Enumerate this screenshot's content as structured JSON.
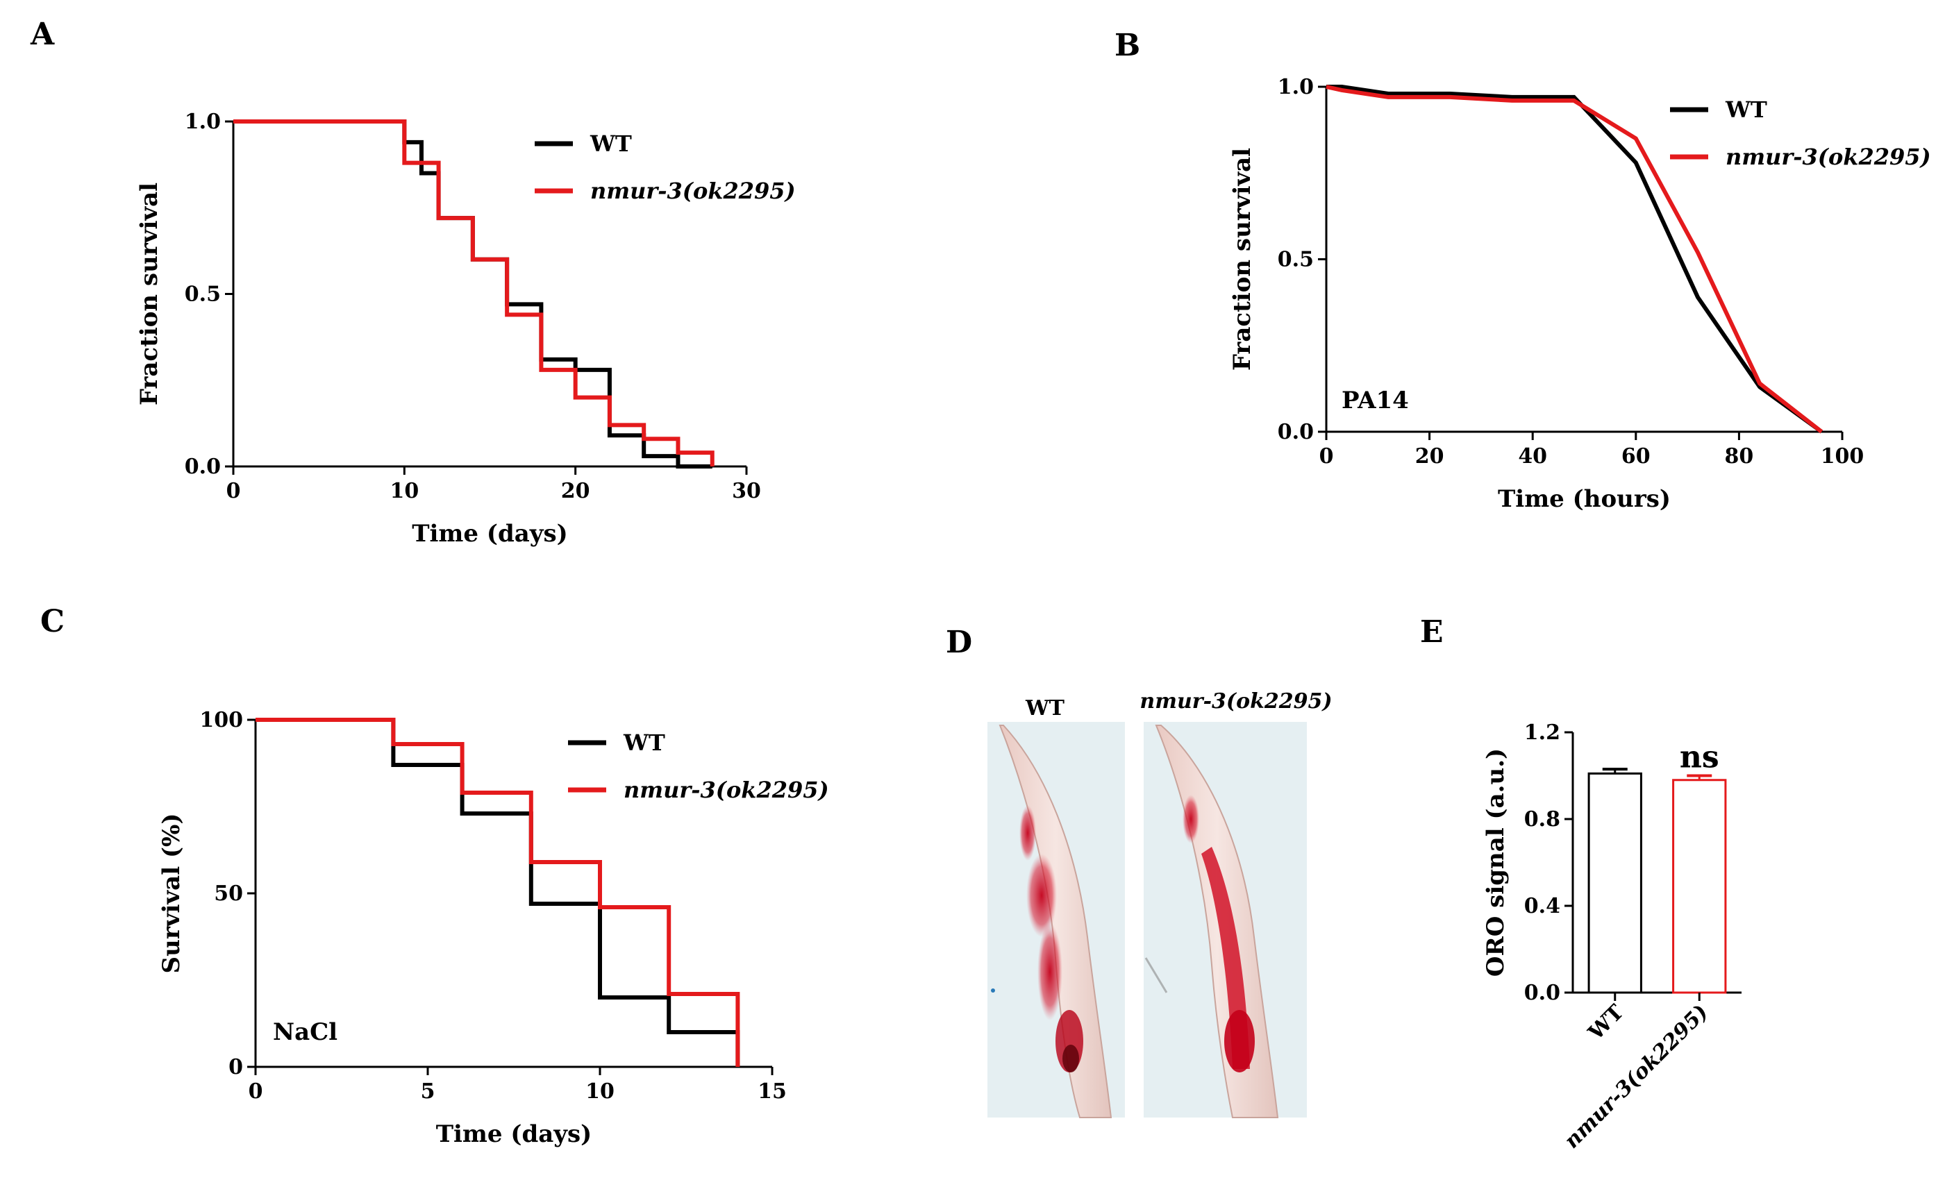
{
  "colors": {
    "wt": "#000000",
    "mutant": "#e41a1c",
    "micrograph_bg": "#e4eef1"
  },
  "panels": {
    "A": "A",
    "B": "B",
    "C": "C",
    "D": "D",
    "E": "E"
  },
  "chart_data": [
    {
      "id": "A",
      "type": "line",
      "step": true,
      "title": "",
      "xlabel": "Time (days)",
      "ylabel": "Fraction survival",
      "xlim": [
        0,
        30
      ],
      "ylim": [
        0,
        1
      ],
      "xticks": [
        "0",
        "10",
        "20",
        "30"
      ],
      "yticks": [
        "0.0",
        "0.5",
        "1.0"
      ],
      "annotation": "",
      "series": [
        {
          "name": "WT",
          "color": "#000000",
          "x": [
            0,
            10,
            11,
            12,
            14,
            16,
            18,
            20,
            22,
            24,
            26,
            28
          ],
          "y": [
            1.0,
            0.94,
            0.85,
            0.72,
            0.6,
            0.47,
            0.31,
            0.28,
            0.09,
            0.03,
            0.0,
            0.0
          ]
        },
        {
          "name": "nmur-3(ok2295)",
          "color": "#e41a1c",
          "x": [
            0,
            10,
            12,
            14,
            16,
            18,
            20,
            22,
            24,
            26,
            28
          ],
          "y": [
            1.0,
            0.88,
            0.72,
            0.6,
            0.44,
            0.28,
            0.2,
            0.12,
            0.08,
            0.04,
            0.0
          ]
        }
      ]
    },
    {
      "id": "B",
      "type": "line",
      "step": false,
      "title": "",
      "xlabel": "Time (hours)",
      "ylabel": "Fraction survival",
      "xlim": [
        0,
        100
      ],
      "ylim": [
        0,
        1
      ],
      "xticks": [
        "0",
        "20",
        "40",
        "60",
        "80",
        "100"
      ],
      "yticks": [
        "0.0",
        "0.5",
        "1.0"
      ],
      "annotation": "PA14",
      "series": [
        {
          "name": "WT",
          "color": "#000000",
          "x": [
            0,
            3,
            12,
            24,
            36,
            48,
            60,
            72,
            84,
            96
          ],
          "y": [
            1.0,
            1.0,
            0.98,
            0.98,
            0.97,
            0.97,
            0.78,
            0.39,
            0.13,
            0.0
          ]
        },
        {
          "name": "nmur-3(ok2295)",
          "color": "#e41a1c",
          "x": [
            0,
            3,
            12,
            24,
            36,
            48,
            60,
            72,
            84,
            96
          ],
          "y": [
            1.0,
            0.99,
            0.97,
            0.97,
            0.96,
            0.96,
            0.85,
            0.52,
            0.14,
            0.0
          ]
        }
      ]
    },
    {
      "id": "C",
      "type": "line",
      "step": true,
      "title": "",
      "xlabel": "Time (days)",
      "ylabel": "Survival (%)",
      "xlim": [
        0,
        15
      ],
      "ylim": [
        0,
        100
      ],
      "xticks": [
        "0",
        "5",
        "10",
        "15"
      ],
      "yticks": [
        "0",
        "50",
        "100"
      ],
      "annotation": "NaCl",
      "series": [
        {
          "name": "WT",
          "color": "#000000",
          "x": [
            0,
            4,
            6,
            8,
            10,
            12,
            14
          ],
          "y": [
            100,
            87,
            73,
            47,
            20,
            10,
            0
          ]
        },
        {
          "name": "nmur-3(ok2295)",
          "color": "#e41a1c",
          "x": [
            0,
            4,
            6,
            8,
            10,
            12,
            14
          ],
          "y": [
            100,
            93,
            79,
            59,
            46,
            21,
            0
          ]
        }
      ]
    },
    {
      "id": "E",
      "type": "bar",
      "title": "",
      "xlabel": "",
      "ylabel": "ORO signal (a.u.)",
      "ylim": [
        0,
        1.2
      ],
      "yticks": [
        "0.0",
        "0.4",
        "0.8",
        "1.2"
      ],
      "categories": [
        "WT",
        "nmur-3(ok2295)"
      ],
      "values": [
        1.01,
        0.98
      ],
      "errors": [
        0.02,
        0.02
      ],
      "colors": [
        "#000000",
        "#e41a1c"
      ],
      "annotation": "ns"
    }
  ],
  "micrographs": {
    "labels": [
      "WT",
      "nmur-3(ok2295)"
    ]
  }
}
